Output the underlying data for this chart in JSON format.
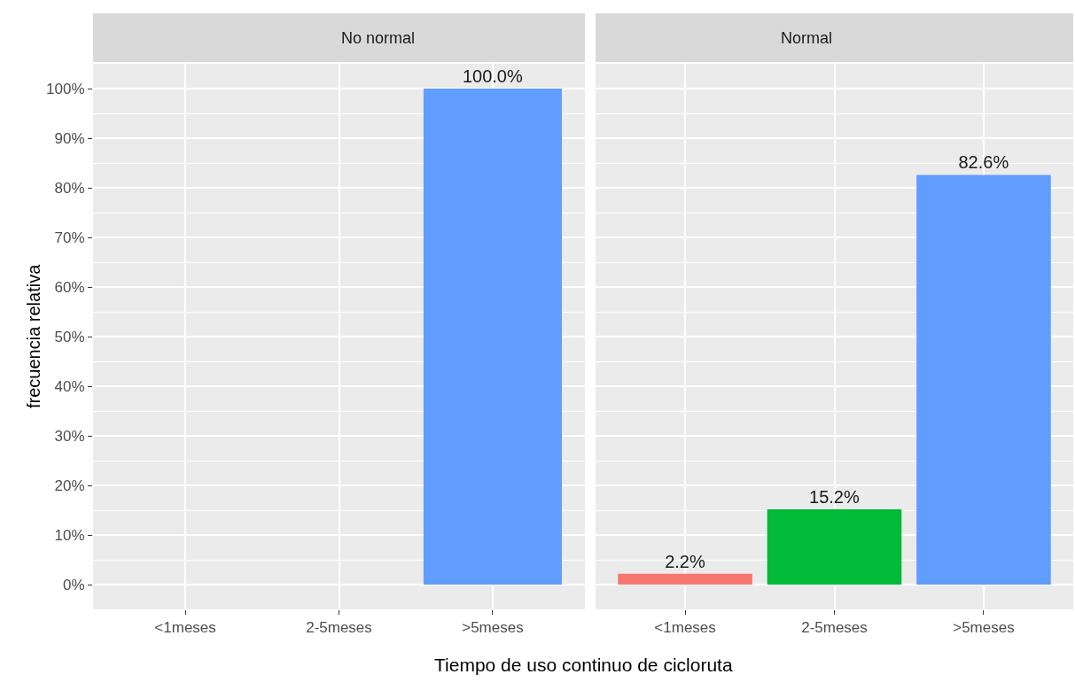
{
  "chart_data": [
    {
      "type": "bar",
      "title": "No normal",
      "ylabel": "frecuencia relativa",
      "xlabel": "Tiempo de uso continuo de cicloruta",
      "categories": [
        "<1meses",
        "2-5meses",
        ">5meses"
      ],
      "values": [
        null,
        null,
        100.0
      ],
      "value_labels": [
        null,
        null,
        "100.0%"
      ],
      "colors": [
        "#f8766d",
        "#00ba38",
        "#619cff"
      ],
      "ylim": [
        -5,
        105
      ],
      "yticks": [
        {
          "value": 0,
          "label": "0%"
        },
        {
          "value": 10,
          "label": "10%"
        },
        {
          "value": 20,
          "label": "20%"
        },
        {
          "value": 30,
          "label": "30%"
        },
        {
          "value": 40,
          "label": "40%"
        },
        {
          "value": 50,
          "label": "50%"
        },
        {
          "value": 60,
          "label": "60%"
        },
        {
          "value": 70,
          "label": "70%"
        },
        {
          "value": 80,
          "label": "80%"
        },
        {
          "value": 90,
          "label": "90%"
        },
        {
          "value": 100,
          "label": "100%"
        }
      ],
      "grid": true
    },
    {
      "type": "bar",
      "title": "Normal",
      "categories": [
        "<1meses",
        "2-5meses",
        ">5meses"
      ],
      "values": [
        2.2,
        15.2,
        82.6
      ],
      "value_labels": [
        "2.2%",
        "15.2%",
        "82.6%"
      ],
      "colors": [
        "#f8766d",
        "#00ba38",
        "#619cff"
      ],
      "ylim": [
        -5,
        105
      ],
      "yticks": [
        0,
        10,
        20,
        30,
        40,
        50,
        60,
        70,
        80,
        90,
        100
      ],
      "grid": true,
      "tick_labels": "x"
    }
  ]
}
